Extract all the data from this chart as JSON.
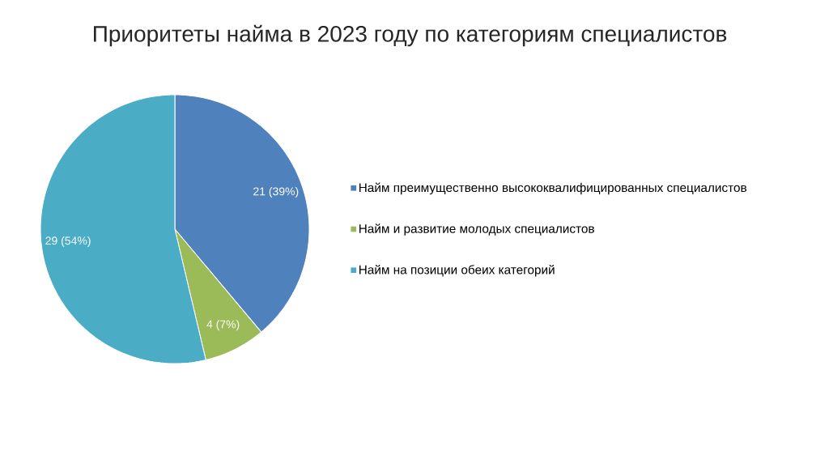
{
  "chart_data": {
    "type": "pie",
    "title": "Приоритеты найма в 2023 году по категориям специалистов",
    "categories": [
      "Найм преимущественно высококвалифицированных специалистов",
      "Найм и развитие молодых специалистов",
      "Найм на позиции обеих категорий"
    ],
    "values": [
      21,
      4,
      29
    ],
    "colors": [
      "#4f81bd",
      "#9bbb59",
      "#4bacc6"
    ],
    "value_labels": [
      "21 (39%)",
      "4 (7%)",
      "29 (54%)"
    ],
    "legend": "right"
  }
}
